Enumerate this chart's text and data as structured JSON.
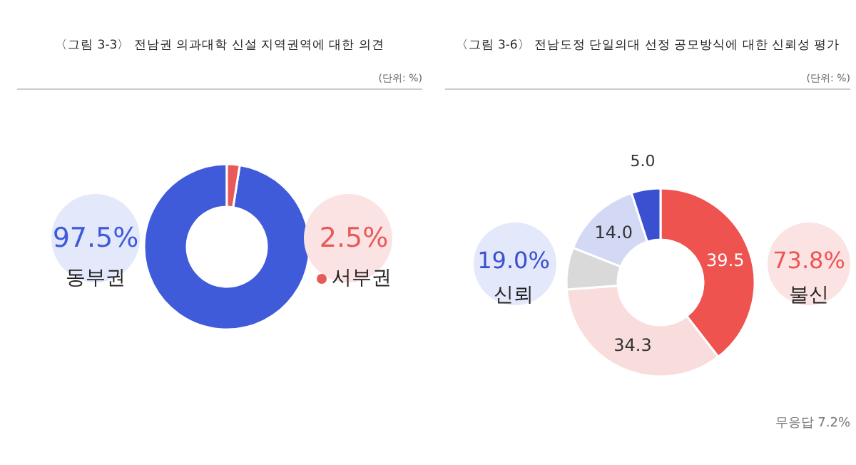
{
  "chart_data": [
    {
      "type": "donut",
      "title": "〈그림 3-3〉 전남권 의과대학 신설 지역권역에 대한 의견",
      "categories": [
        "동부권",
        "서부권"
      ],
      "values": [
        97.5,
        2.5
      ],
      "colors": [
        "#3f5bd9",
        "#e85a5a"
      ],
      "value_labels": [
        "97.5%",
        "2.5%"
      ],
      "annotations": [
        "(단위: %)"
      ]
    },
    {
      "type": "donut",
      "title": "〈그림 3-6〉 전남도정 단일의대 선정 공모방식에 대한 신뢰성 평가",
      "categories": [
        null,
        null,
        null,
        null,
        null
      ],
      "values": [
        39.5,
        34.3,
        7.2,
        14.0,
        5.0
      ],
      "colors": [
        "#ef5350",
        "#f9dcdc",
        "#d9d9d9",
        "#d3d9f5",
        "#3b50d0"
      ],
      "value_labels": [
        "39.5",
        "34.3",
        null,
        "14.0",
        "5.0"
      ],
      "annotations": [
        "(단위: %)",
        "19.0%",
        "신뢰",
        "73.8%",
        "불신",
        "무응답 7.2%"
      ]
    }
  ]
}
